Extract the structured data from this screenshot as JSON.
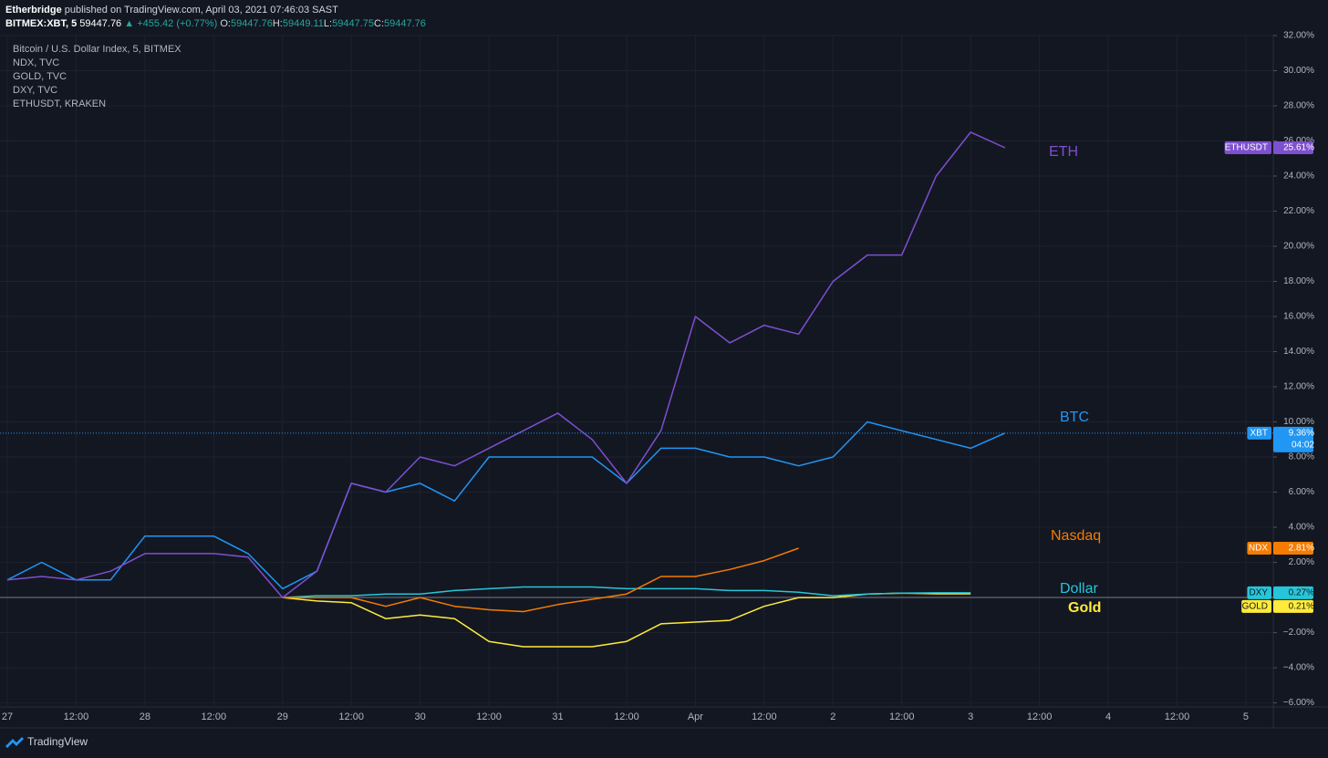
{
  "header": {
    "publisher": "Etherbridge",
    "published": "published on TradingView.com, April 03, 2021 07:46:03 SAST",
    "symbol": "BITMEX:XBT, 5",
    "price": "59447.76",
    "change": "▲ +455.42 (+0.77%)",
    "ohlc": [
      {
        "label": "O:",
        "value": "59447.76"
      },
      {
        "label": "H:",
        "value": "59449.11"
      },
      {
        "label": "L:",
        "value": "59447.75"
      },
      {
        "label": "C:",
        "value": "59447.76"
      }
    ]
  },
  "footer": {
    "brand": "TradingView"
  },
  "chart_data": {
    "type": "line",
    "categories": [
      "27",
      null,
      "12:00",
      null,
      "28",
      null,
      "12:00",
      null,
      "29",
      null,
      "12:00",
      null,
      "30",
      null,
      "12:00",
      null,
      "31",
      null,
      "12:00",
      null,
      "Apr",
      null,
      "12:00",
      null,
      "2",
      null,
      "12:00",
      null,
      "3",
      null,
      "12:00",
      null,
      "4",
      null,
      "12:00",
      null,
      "5"
    ],
    "ylim": [
      -6.23,
      32.05
    ],
    "yticks": [
      {
        "value": -6,
        "label": "−6.00%"
      },
      {
        "value": -4,
        "label": "−4.00%"
      },
      {
        "value": -2,
        "label": "−2.00%"
      },
      {
        "value": 2,
        "label": "2.00%"
      },
      {
        "value": 4,
        "label": "4.00%"
      },
      {
        "value": 6,
        "label": "6.00%"
      },
      {
        "value": 8,
        "label": "8.00%"
      },
      {
        "value": 10,
        "label": "10.00%"
      },
      {
        "value": 12,
        "label": "12.00%"
      },
      {
        "value": 14,
        "label": "14.00%"
      },
      {
        "value": 16,
        "label": "16.00%"
      },
      {
        "value": 18,
        "label": "18.00%"
      },
      {
        "value": 20,
        "label": "20.00%"
      },
      {
        "value": 22,
        "label": "22.00%"
      },
      {
        "value": 24,
        "label": "24.00%"
      },
      {
        "value": 26,
        "label": "26.00%"
      },
      {
        "value": 28,
        "label": "28.00%"
      },
      {
        "value": 30,
        "label": "30.00%"
      },
      {
        "value": 32,
        "label": "32.00%"
      }
    ],
    "grid": true,
    "series": [
      {
        "name": "Bitcoin / U.S. Dollar Index, 5, BITMEX",
        "annotation": "BTC",
        "color": "#2196f3",
        "values": [
          1,
          2,
          1,
          1,
          3.5,
          3.5,
          3.5,
          2.5,
          0.5,
          1.5,
          6.5,
          6,
          6.5,
          5.5,
          8,
          8,
          8,
          8,
          6.5,
          8.5,
          8.5,
          8,
          8,
          7.5,
          8,
          10,
          9.5,
          9,
          8.5,
          9.36,
          null,
          null,
          null,
          null,
          null,
          null,
          null
        ],
        "badge": {
          "symbol": "XBT",
          "value": 9.36,
          "label": "9.36%",
          "countdown": "04:02"
        }
      },
      {
        "name": "NDX, TVC",
        "annotation": "Nasdaq",
        "color": "#f57c00",
        "values": [
          null,
          null,
          null,
          null,
          null,
          null,
          null,
          null,
          0,
          0,
          0,
          -0.5,
          0,
          -0.5,
          -0.7,
          -0.8,
          -0.4,
          -0.1,
          0.2,
          1.2,
          1.2,
          1.6,
          2.1,
          2.81,
          null,
          null,
          null,
          null,
          null,
          null,
          null,
          null,
          null,
          null,
          null,
          null,
          null
        ],
        "badge": {
          "symbol": "NDX",
          "value": 2.81,
          "label": "2.81%"
        }
      },
      {
        "name": "GOLD, TVC",
        "annotation": "Gold",
        "color": "#ffeb3b",
        "values": [
          null,
          null,
          null,
          null,
          null,
          null,
          null,
          null,
          0,
          -0.2,
          -0.3,
          -1.2,
          -1,
          -1.2,
          -2.5,
          -2.8,
          -2.8,
          -2.8,
          -2.5,
          -1.5,
          -1.4,
          -1.3,
          -0.5,
          0,
          0,
          0.2,
          0.25,
          0.21,
          0.21,
          null,
          null,
          null,
          null,
          null,
          null,
          null,
          null
        ],
        "badge": {
          "symbol": "GOLD",
          "value": 0.21,
          "label": "0.21%"
        }
      },
      {
        "name": "DXY, TVC",
        "annotation": "Dollar",
        "color": "#26c6da",
        "values": [
          null,
          null,
          null,
          null,
          null,
          null,
          null,
          null,
          0,
          0.1,
          0.1,
          0.2,
          0.2,
          0.4,
          0.5,
          0.6,
          0.6,
          0.6,
          0.5,
          0.5,
          0.5,
          0.4,
          0.4,
          0.3,
          0.1,
          0.2,
          0.25,
          0.27,
          0.27,
          null,
          null,
          null,
          null,
          null,
          null,
          null,
          null
        ],
        "badge": {
          "symbol": "DXY",
          "value": 0.27,
          "label": "0.27%"
        }
      },
      {
        "name": "ETHUSDT, KRAKEN",
        "annotation": "ETH",
        "color": "#7e4fd0",
        "values": [
          1,
          1.2,
          1,
          1.5,
          2.5,
          2.5,
          2.5,
          2.3,
          0,
          1.5,
          6.5,
          6,
          8,
          7.5,
          8.5,
          9.5,
          10.5,
          9,
          6.5,
          9.5,
          16,
          14.5,
          15.5,
          15,
          18,
          19.5,
          19.5,
          24,
          26.5,
          25.61,
          null,
          null,
          null,
          null,
          null,
          null,
          null
        ],
        "badge": {
          "symbol": "ETHUSDT",
          "value": 25.61,
          "label": "25.61%"
        }
      }
    ]
  }
}
